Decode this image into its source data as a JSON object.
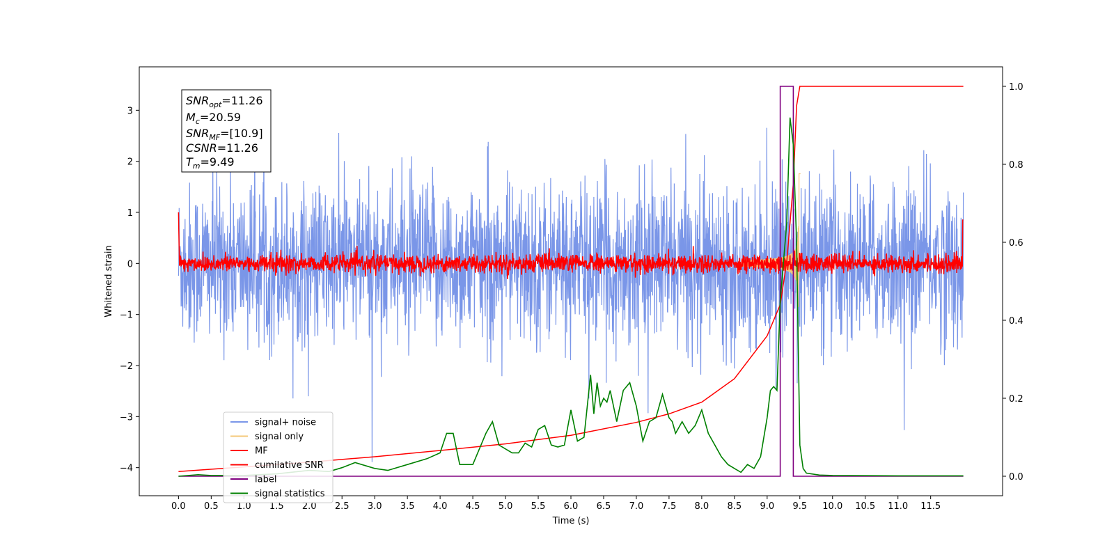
{
  "chart_data": {
    "type": "line",
    "xlabel": "Time (s)",
    "ylabel": "Whitened strain",
    "xlim": [
      -0.6,
      12.6
    ],
    "ylim": [
      -4.55,
      3.85
    ],
    "y2lim": [
      -0.05,
      1.05
    ],
    "xticks": [
      "0.0",
      "0.5",
      "1.0",
      "1.5",
      "2.0",
      "2.5",
      "3.0",
      "3.5",
      "4.0",
      "4.5",
      "5.0",
      "5.5",
      "6.0",
      "6.5",
      "7.0",
      "7.5",
      "8.0",
      "8.5",
      "9.0",
      "9.5",
      "10.0",
      "10.5",
      "11.0",
      "11.5"
    ],
    "yticks": [
      "3",
      "2",
      "1",
      "0",
      "−1",
      "−2",
      "−3",
      "−4"
    ],
    "y2ticks": [
      "1.0",
      "0.8",
      "0.6",
      "0.4",
      "0.2",
      "0.0"
    ],
    "grid": false,
    "legend_position": "lower-left",
    "annotation": {
      "snr_opt": "11.26",
      "mc": "20.59",
      "snr_mf": "[10.9]",
      "csnr": "11.26",
      "tm": "9.49"
    },
    "series": [
      {
        "name": "signal+ noise",
        "color": "#7a96e8",
        "axis": "left",
        "style": "noise",
        "x_range": [
          0,
          12
        ],
        "std": 0.78
      },
      {
        "name": "signal only",
        "color": "#f5c87a",
        "axis": "left",
        "style": "chirp",
        "merger_time": 9.49
      },
      {
        "name": "MF",
        "color": "#ff0000",
        "axis": "left",
        "style": "mf",
        "x_range": [
          0,
          12
        ],
        "std": 0.09
      },
      {
        "name": "cumilative SNR",
        "color": "#ff0000",
        "axis": "right",
        "x": [
          0.0,
          1.0,
          2.0,
          3.0,
          4.0,
          5.0,
          6.0,
          7.0,
          7.5,
          8.0,
          8.5,
          9.0,
          9.2,
          9.3,
          9.4,
          9.45,
          9.5,
          10.0,
          11.0,
          12.0
        ],
        "values": [
          0.012,
          0.024,
          0.036,
          0.05,
          0.066,
          0.083,
          0.105,
          0.138,
          0.16,
          0.19,
          0.25,
          0.36,
          0.44,
          0.55,
          0.75,
          0.95,
          1.0,
          1.0,
          1.0,
          1.0
        ]
      },
      {
        "name": "label",
        "color": "#800080",
        "axis": "right",
        "x": [
          0.0,
          9.2,
          9.2,
          9.4,
          9.4,
          9.5,
          9.5,
          12.0
        ],
        "values": [
          0.0,
          0.0,
          1.0,
          1.0,
          0.0,
          0.0,
          0.0,
          0.0
        ]
      },
      {
        "name": "signal statistics",
        "color": "#008000",
        "axis": "right",
        "x": [
          0.0,
          0.3,
          0.5,
          1.0,
          1.5,
          2.0,
          2.3,
          2.5,
          2.7,
          3.0,
          3.2,
          3.5,
          3.8,
          4.0,
          4.1,
          4.2,
          4.3,
          4.5,
          4.7,
          4.8,
          4.9,
          5.0,
          5.1,
          5.2,
          5.3,
          5.4,
          5.5,
          5.6,
          5.7,
          5.8,
          5.9,
          6.0,
          6.1,
          6.2,
          6.3,
          6.35,
          6.4,
          6.45,
          6.5,
          6.55,
          6.6,
          6.7,
          6.8,
          6.9,
          7.0,
          7.1,
          7.2,
          7.3,
          7.4,
          7.5,
          7.55,
          7.6,
          7.7,
          7.8,
          7.9,
          8.0,
          8.1,
          8.2,
          8.3,
          8.4,
          8.5,
          8.6,
          8.7,
          8.8,
          8.9,
          9.0,
          9.05,
          9.1,
          9.15,
          9.2,
          9.3,
          9.35,
          9.4,
          9.45,
          9.5,
          9.55,
          9.6,
          9.8,
          10.0,
          11.0,
          12.0
        ],
        "values": [
          0.0,
          0.004,
          0.002,
          0.002,
          0.006,
          0.015,
          0.012,
          0.022,
          0.035,
          0.02,
          0.015,
          0.03,
          0.045,
          0.06,
          0.11,
          0.11,
          0.03,
          0.03,
          0.11,
          0.14,
          0.08,
          0.07,
          0.06,
          0.06,
          0.085,
          0.075,
          0.12,
          0.13,
          0.08,
          0.075,
          0.08,
          0.17,
          0.09,
          0.1,
          0.26,
          0.16,
          0.24,
          0.18,
          0.2,
          0.19,
          0.22,
          0.14,
          0.22,
          0.24,
          0.18,
          0.09,
          0.14,
          0.15,
          0.21,
          0.15,
          0.14,
          0.11,
          0.14,
          0.11,
          0.13,
          0.17,
          0.11,
          0.08,
          0.05,
          0.03,
          0.02,
          0.01,
          0.03,
          0.02,
          0.05,
          0.15,
          0.22,
          0.23,
          0.22,
          0.45,
          0.65,
          0.92,
          0.85,
          0.6,
          0.08,
          0.02,
          0.008,
          0.003,
          0.002,
          0.001,
          0.001
        ]
      }
    ]
  }
}
